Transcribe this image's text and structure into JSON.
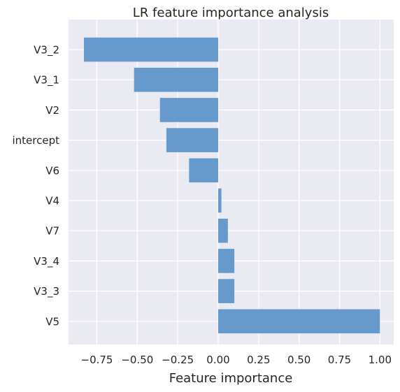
{
  "chart_data": {
    "type": "bar",
    "orientation": "horizontal",
    "title": "LR feature importance analysis",
    "xlabel": "Feature importance",
    "ylabel": "",
    "categories": [
      "V3_2",
      "V3_1",
      "V2",
      "intercept",
      "V6",
      "V4",
      "V7",
      "V3_4",
      "V3_3",
      "V5"
    ],
    "values": [
      -0.83,
      -0.52,
      -0.36,
      -0.32,
      -0.18,
      0.02,
      0.06,
      0.1,
      0.1,
      1.0
    ],
    "xlim": [
      -0.925,
      1.085
    ],
    "xticks": [
      -0.75,
      -0.5,
      -0.25,
      0.0,
      0.25,
      0.5,
      0.75,
      1.0
    ],
    "xtick_labels": [
      "−0.75",
      "−0.50",
      "−0.25",
      "0.00",
      "0.25",
      "0.50",
      "0.75",
      "1.00"
    ],
    "grid": true,
    "colors": {
      "bar": "#6699cc",
      "plot_background": "#eaeaf2",
      "grid": "#ffffff",
      "text": "#262626"
    }
  }
}
